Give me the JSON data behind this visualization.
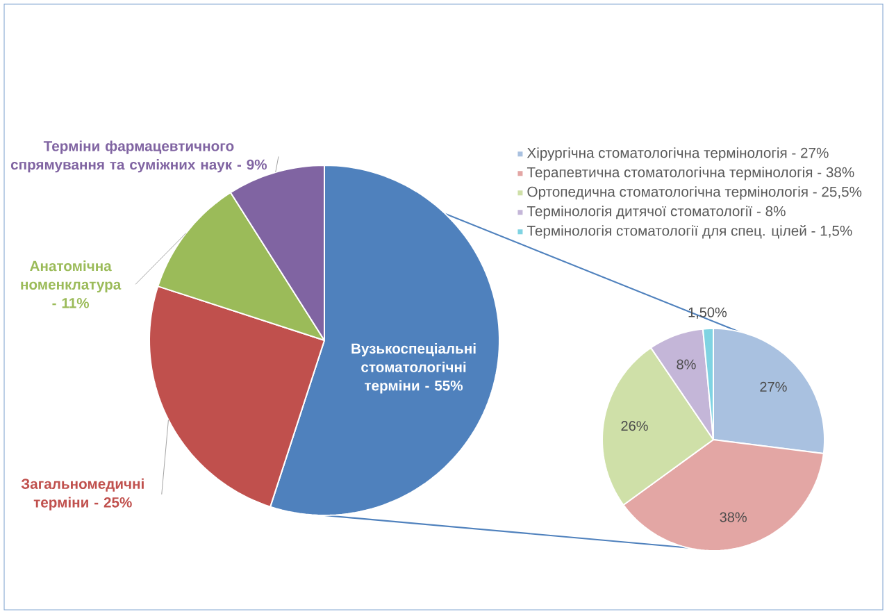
{
  "chart_data": [
    {
      "type": "pie",
      "categories": [
        "Вузькоспеціальні стоматологічні терміни - 55%",
        "Загальномедичні терміни - 25%",
        "Анатомічна номенклатура - 11%",
        "Терміни фармацевтичного спрямування та суміжних наук - 9%"
      ],
      "values": [
        55,
        25,
        11,
        9
      ],
      "colors": [
        "#4f81bd",
        "#c0504d",
        "#9bbb59",
        "#8064a2"
      ]
    },
    {
      "type": "pie",
      "categories": [
        "Хірургічна стоматологічна термінологія - 27%",
        "Терапевтична стоматологічна термінологія - 38%",
        "Ортопедична стоматологічна термінологія - 25,5%",
        "Термінологія дитячої стоматології - 8%",
        "Термінологія стоматології для спец. цілей - 1,5%"
      ],
      "values": [
        27,
        38,
        25.5,
        8,
        1.5
      ],
      "value_labels": [
        "27%",
        "38%",
        "26%",
        "8%",
        "1,50%"
      ],
      "colors": [
        "#a9c1e0",
        "#e3a6a4",
        "#cfe0a8",
        "#c4b6d8",
        "#7fd3e2"
      ],
      "legend": "top"
    }
  ]
}
